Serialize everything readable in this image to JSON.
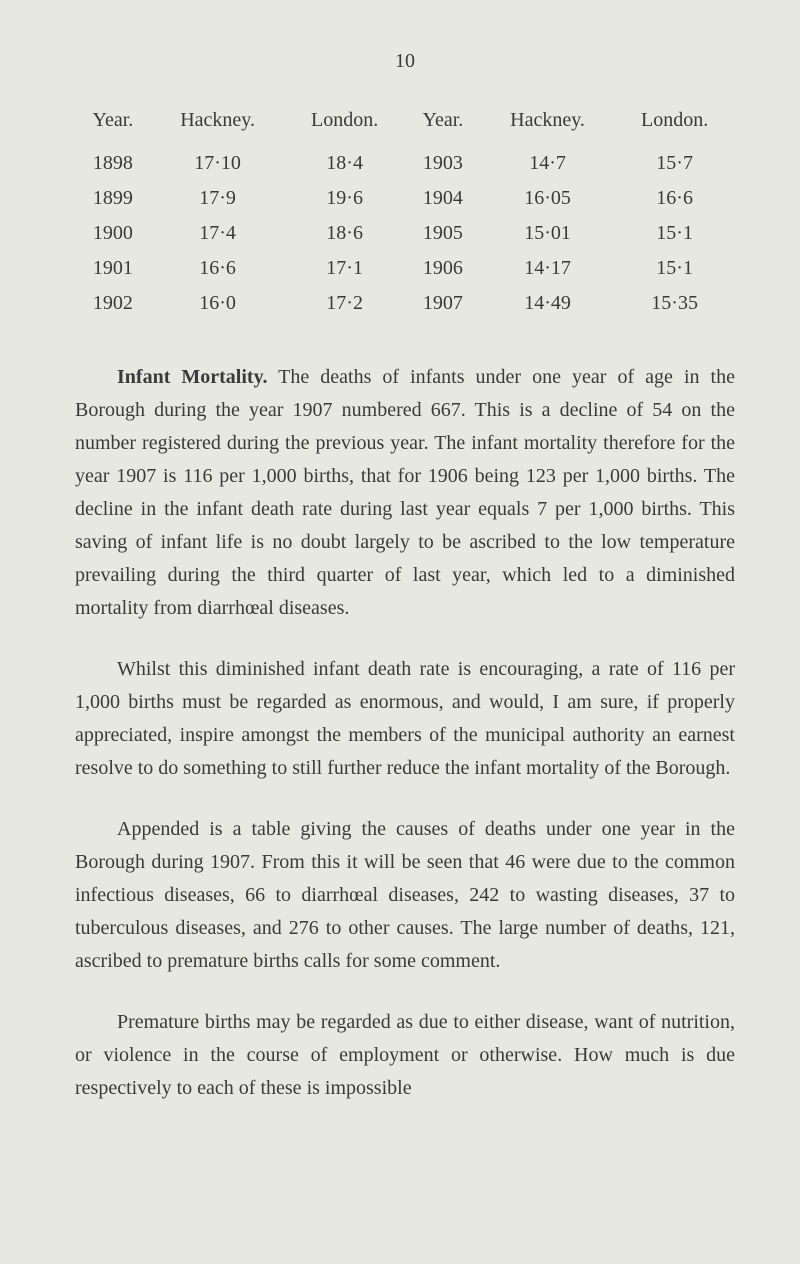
{
  "page_number": "10",
  "table": {
    "headers": [
      "Year.",
      "Hackney.",
      "London.",
      "Year.",
      "Hackney.",
      "London."
    ],
    "rows": [
      [
        "1898",
        "17·10",
        "18·4",
        "1903",
        "14·7",
        "15·7"
      ],
      [
        "1899",
        "17·9",
        "19·6",
        "1904",
        "16·05",
        "16·6"
      ],
      [
        "1900",
        "17·4",
        "18·6",
        "1905",
        "15·01",
        "15·1"
      ],
      [
        "1901",
        "16·6",
        "17·1",
        "1906",
        "14·17",
        "15·1"
      ],
      [
        "1902",
        "16·0",
        "17·2",
        "1907",
        "14·49",
        "15·35"
      ]
    ]
  },
  "paragraphs": {
    "p1_bold": "Infant Mortality.",
    "p1_text": "  The deaths of infants under one year of age in the Borough during the year 1907 numbered 667. This is a decline of 54 on the number registered during the previous year. The infant mortality therefore for the year 1907 is 116 per 1,000 births, that for 1906 being 123 per 1,000 births. The decline in the infant death rate during last year equals 7 per 1,000 births. This saving of infant life is no doubt largely to be ascribed to the low temperature prevailing during the third quarter of last year, which led to a diminished mortality from diarrhœal diseases.",
    "p2": "Whilst this diminished infant death rate is encouraging, a rate of 116 per 1,000 births must be regarded as enormous, and would, I am sure, if properly appreciated, inspire amongst the members of the municipal authority an earnest resolve to do something to still further reduce the infant mortality of the Borough.",
    "p3": "Appended is a table giving the causes of deaths under one year in the Borough during 1907. From this it will be seen that 46 were due to the common infectious diseases, 66 to diarrhœal diseases, 242 to wasting diseases, 37 to tuberculous diseases, and 276 to other causes. The large number of deaths, 121, ascribed to premature births calls for some comment.",
    "p4": "Premature births may be regarded as due to either disease, want of nutrition, or violence in the course of employment or otherwise. How much is due respectively to each of these is impossible"
  }
}
